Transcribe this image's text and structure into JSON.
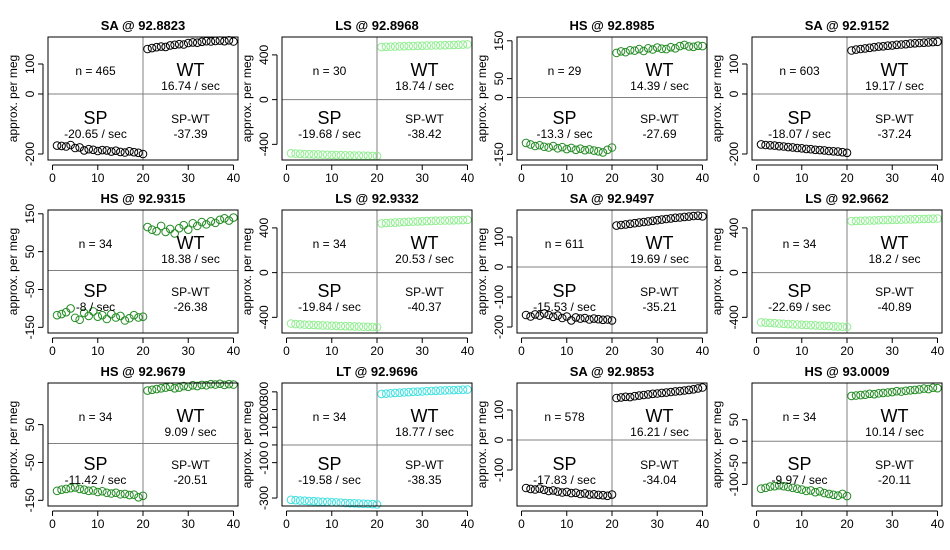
{
  "common": {
    "ylabel": "approx. per meg"
  },
  "chart_data": [
    {
      "type": "scatter",
      "title": "SA @ 92.8823",
      "color": "#000000",
      "ylim": [
        -220,
        190
      ],
      "yticks": [
        -200,
        0,
        100
      ],
      "xlim": [
        -1,
        41
      ],
      "xticks": [
        0,
        10,
        20,
        30,
        40
      ],
      "annotations": {
        "n": "n = 465",
        "wt": "WT",
        "wt_rate": "16.74 / sec",
        "sp": "SP",
        "sp_rate": "-20.65 / sec",
        "spwt": "SP-WT",
        "spwt_val": "-37.39"
      },
      "sp_values": [
        -172,
        -173,
        -175,
        -170,
        -180,
        -178,
        -188,
        -184,
        -186,
        -190,
        -187,
        -188,
        -192,
        -189,
        -193,
        -195,
        -191,
        -194,
        -196,
        -200
      ],
      "wt_values": [
        150,
        153,
        156,
        158,
        157,
        162,
        164,
        166,
        165,
        170,
        172,
        171,
        174,
        176,
        175,
        177,
        178,
        176,
        179,
        175
      ]
    },
    {
      "type": "scatter",
      "title": "LS @ 92.8968",
      "color": "#90ee90",
      "ylim": [
        -540,
        560
      ],
      "yticks": [
        -400,
        0,
        400
      ],
      "xlim": [
        -1,
        41
      ],
      "xticks": [
        0,
        10,
        20,
        30,
        40
      ],
      "annotations": {
        "n": "n = 30",
        "wt": "WT",
        "wt_rate": "18.74 / sec",
        "sp": "SP",
        "sp_rate": "-19.68 / sec",
        "spwt": "SP-WT",
        "spwt_val": "-38.42"
      },
      "sp_values": [
        -480,
        -482,
        -485,
        -487,
        -488,
        -490,
        -490,
        -492,
        -493,
        -495,
        -496,
        -497,
        -498,
        -499,
        -500,
        -500,
        -501,
        -502,
        -503,
        -505
      ],
      "wt_values": [
        470,
        472,
        474,
        475,
        476,
        478,
        479,
        480,
        481,
        482,
        483,
        484,
        485,
        486,
        487,
        488,
        489,
        490,
        492,
        494
      ]
    },
    {
      "type": "scatter",
      "title": "HS @ 92.8985",
      "color": "#228b22",
      "ylim": [
        -165,
        160
      ],
      "yticks": [
        -150,
        0,
        50,
        150
      ],
      "xlim": [
        -1,
        41
      ],
      "xticks": [
        0,
        10,
        20,
        30,
        40
      ],
      "annotations": {
        "n": "n = 29",
        "wt": "WT",
        "wt_rate": "14.39 / sec",
        "sp": "SP",
        "sp_rate": "-13.3 / sec",
        "spwt": "SP-WT",
        "spwt_val": "-27.69"
      },
      "sp_values": [
        -120,
        -124,
        -128,
        -126,
        -130,
        -132,
        -128,
        -134,
        -131,
        -136,
        -133,
        -138,
        -135,
        -139,
        -137,
        -140,
        -142,
        -145,
        -138,
        -132
      ],
      "wt_values": [
        118,
        122,
        120,
        125,
        124,
        128,
        123,
        130,
        127,
        132,
        129,
        128,
        133,
        130,
        136,
        139,
        135,
        134,
        137,
        136
      ]
    },
    {
      "type": "scatter",
      "title": "SA @ 92.9152",
      "color": "#000000",
      "ylim": [
        -220,
        190
      ],
      "yticks": [
        -200,
        0,
        100
      ],
      "xlim": [
        -1,
        41
      ],
      "xticks": [
        0,
        10,
        20,
        30,
        40
      ],
      "annotations": {
        "n": "n = 603",
        "wt": "WT",
        "wt_rate": "19.17 / sec",
        "sp": "SP",
        "sp_rate": "-18.07 / sec",
        "spwt": "SP-WT",
        "spwt_val": "-37.24"
      },
      "sp_values": [
        -168,
        -170,
        -171,
        -172,
        -174,
        -175,
        -177,
        -178,
        -180,
        -181,
        -183,
        -184,
        -186,
        -187,
        -188,
        -190,
        -191,
        -192,
        -194,
        -196
      ],
      "wt_values": [
        145,
        148,
        150,
        152,
        154,
        156,
        158,
        159,
        161,
        162,
        164,
        165,
        166,
        168,
        169,
        170,
        171,
        172,
        173,
        174
      ]
    },
    {
      "type": "scatter",
      "title": "HS @ 92.9315",
      "color": "#228b22",
      "ylim": [
        -165,
        160
      ],
      "yticks": [
        -150,
        -50,
        50,
        150
      ],
      "xlim": [
        -1,
        41
      ],
      "xticks": [
        0,
        10,
        20,
        30,
        40
      ],
      "annotations": {
        "n": "n = 34",
        "wt": "WT",
        "wt_rate": "18.38 / sec",
        "sp": "SP",
        "sp_rate": "-8 / sec",
        "spwt": "SP-WT",
        "spwt_val": "-26.38"
      },
      "sp_values": [
        -118,
        -115,
        -110,
        -100,
        -125,
        -130,
        -112,
        -120,
        -108,
        -122,
        -118,
        -128,
        -115,
        -124,
        -120,
        -132,
        -126,
        -118,
        -124,
        -122
      ],
      "wt_values": [
        115,
        108,
        104,
        118,
        102,
        110,
        98,
        112,
        120,
        108,
        125,
        118,
        128,
        122,
        130,
        126,
        134,
        138,
        132,
        140
      ]
    },
    {
      "type": "scatter",
      "title": "LS @ 92.9332",
      "color": "#90ee90",
      "ylim": [
        -540,
        560
      ],
      "yticks": [
        -400,
        0,
        400
      ],
      "xlim": [
        -1,
        41
      ],
      "xticks": [
        0,
        10,
        20,
        30,
        40
      ],
      "annotations": {
        "n": "n = 34",
        "wt": "WT",
        "wt_rate": "20.53 / sec",
        "sp": "SP",
        "sp_rate": "-19.84 / sec",
        "spwt": "SP-WT",
        "spwt_val": "-40.37"
      },
      "sp_values": [
        -455,
        -460,
        -462,
        -465,
        -467,
        -468,
        -470,
        -472,
        -473,
        -475,
        -476,
        -478,
        -479,
        -480,
        -481,
        -482,
        -484,
        -485,
        -486,
        -488
      ],
      "wt_values": [
        440,
        443,
        446,
        448,
        450,
        452,
        454,
        456,
        458,
        459,
        461,
        462,
        464,
        465,
        466,
        467,
        468,
        469,
        470,
        472
      ]
    },
    {
      "type": "scatter",
      "title": "SA @ 92.9497",
      "color": "#000000",
      "ylim": [
        -220,
        190
      ],
      "yticks": [
        -200,
        -100,
        0,
        100
      ],
      "xlim": [
        -1,
        41
      ],
      "xticks": [
        0,
        10,
        20,
        30,
        40
      ],
      "annotations": {
        "n": "n = 611",
        "wt": "WT",
        "wt_rate": "19.69 / sec",
        "sp": "SP",
        "sp_rate": "-15.53 / sec",
        "spwt": "SP-WT",
        "spwt_val": "-35.21"
      },
      "sp_values": [
        -160,
        -165,
        -158,
        -162,
        -155,
        -160,
        -166,
        -162,
        -170,
        -165,
        -178,
        -168,
        -172,
        -170,
        -175,
        -172,
        -174,
        -176,
        -175,
        -178
      ],
      "wt_values": [
        138,
        140,
        142,
        144,
        146,
        148,
        150,
        152,
        154,
        156,
        158,
        160,
        162,
        164,
        165,
        167,
        168,
        170,
        171,
        169
      ]
    },
    {
      "type": "scatter",
      "title": "LS @ 92.9662",
      "color": "#90ee90",
      "ylim": [
        -540,
        560
      ],
      "yticks": [
        -400,
        0,
        400
      ],
      "xlim": [
        -1,
        41
      ],
      "xticks": [
        0,
        10,
        20,
        30,
        40
      ],
      "annotations": {
        "n": "n = 34",
        "wt": "WT",
        "wt_rate": "18.2 / sec",
        "sp": "SP",
        "sp_rate": "-22.69 / sec",
        "spwt": "SP-WT",
        "spwt_val": "-40.89"
      },
      "sp_values": [
        -445,
        -448,
        -450,
        -452,
        -455,
        -458,
        -460,
        -462,
        -464,
        -466,
        -468,
        -470,
        -472,
        -474,
        -476,
        -478,
        -480,
        -482,
        -484,
        -486
      ],
      "wt_values": [
        460,
        462,
        463,
        465,
        466,
        467,
        469,
        470,
        471,
        472,
        473,
        474,
        476,
        477,
        478,
        479,
        480,
        481,
        482,
        484
      ]
    },
    {
      "type": "scatter",
      "title": "HS @ 92.9679",
      "color": "#228b22",
      "ylim": [
        -165,
        160
      ],
      "yticks": [
        -150,
        -50,
        50
      ],
      "xlim": [
        -1,
        41
      ],
      "xticks": [
        0,
        10,
        20,
        30,
        40
      ],
      "annotations": {
        "n": "n = 34",
        "wt": "WT",
        "wt_rate": "9.09 / sec",
        "sp": "SP",
        "sp_rate": "-11.42 / sec",
        "spwt": "SP-WT",
        "spwt_val": "-20.51"
      },
      "sp_values": [
        -125,
        -122,
        -120,
        -118,
        -116,
        -120,
        -122,
        -125,
        -124,
        -128,
        -126,
        -130,
        -132,
        -130,
        -134,
        -133,
        -136,
        -135,
        -142,
        -138
      ],
      "wt_values": [
        140,
        142,
        144,
        146,
        148,
        150,
        146,
        148,
        152,
        150,
        154,
        152,
        155,
        154,
        157,
        156,
        158,
        155,
        157,
        156
      ]
    },
    {
      "type": "scatter",
      "title": "LT @ 92.9696",
      "color": "#40e0e0",
      "ylim": [
        -345,
        350
      ],
      "yticks": [
        -300,
        -100,
        0,
        100,
        200,
        300
      ],
      "xlim": [
        -1,
        41
      ],
      "xticks": [
        0,
        10,
        20,
        30,
        40
      ],
      "annotations": {
        "n": "n = 34",
        "wt": "WT",
        "wt_rate": "18.77 / sec",
        "sp": "SP",
        "sp_rate": "-19.58 / sec",
        "spwt": "SP-WT",
        "spwt_val": "-38.35"
      },
      "sp_values": [
        -310,
        -312,
        -314,
        -315,
        -317,
        -318,
        -320,
        -321,
        -322,
        -324,
        -325,
        -326,
        -328,
        -329,
        -330,
        -331,
        -332,
        -333,
        -334,
        -336
      ],
      "wt_values": [
        288,
        290,
        292,
        294,
        295,
        297,
        298,
        300,
        301,
        302,
        304,
        305,
        306,
        307,
        308,
        309,
        310,
        311,
        312,
        313
      ]
    },
    {
      "type": "scatter",
      "title": "SA @ 92.9853",
      "color": "#000000",
      "ylim": [
        -220,
        190
      ],
      "yticks": [
        -100,
        0,
        100
      ],
      "xlim": [
        -1,
        41
      ],
      "xticks": [
        0,
        10,
        20,
        30,
        40
      ],
      "annotations": {
        "n": "n = 578",
        "wt": "WT",
        "wt_rate": "16.21 / sec",
        "sp": "SP",
        "sp_rate": "-17.83 / sec",
        "spwt": "SP-WT",
        "spwt_val": "-34.04"
      },
      "sp_values": [
        -160,
        -163,
        -165,
        -162,
        -166,
        -170,
        -168,
        -172,
        -175,
        -173,
        -177,
        -176,
        -180,
        -178,
        -182,
        -181,
        -183,
        -184,
        -186,
        -182
      ],
      "wt_values": [
        140,
        142,
        144,
        143,
        146,
        148,
        150,
        152,
        154,
        155,
        157,
        158,
        160,
        162,
        163,
        165,
        167,
        169,
        172,
        175
      ]
    },
    {
      "type": "scatter",
      "title": "HS @ 93.0009",
      "color": "#228b22",
      "ylim": [
        -150,
        135
      ],
      "yticks": [
        -100,
        -50,
        0,
        50
      ],
      "xlim": [
        -1,
        41
      ],
      "xticks": [
        0,
        10,
        20,
        30,
        40
      ],
      "annotations": {
        "n": "n = 34",
        "wt": "WT",
        "wt_rate": "10.14 / sec",
        "sp": "SP",
        "sp_rate": "-9.97 / sec",
        "spwt": "SP-WT",
        "spwt_val": "-20.11"
      },
      "sp_values": [
        -110,
        -108,
        -105,
        -104,
        -102,
        -104,
        -106,
        -108,
        -110,
        -112,
        -115,
        -114,
        -118,
        -116,
        -120,
        -122,
        -124,
        -126,
        -122,
        -127
      ],
      "wt_values": [
        105,
        106,
        107,
        108,
        110,
        109,
        111,
        112,
        113,
        114,
        116,
        115,
        117,
        118,
        119,
        120,
        122,
        121,
        124,
        123
      ]
    }
  ]
}
